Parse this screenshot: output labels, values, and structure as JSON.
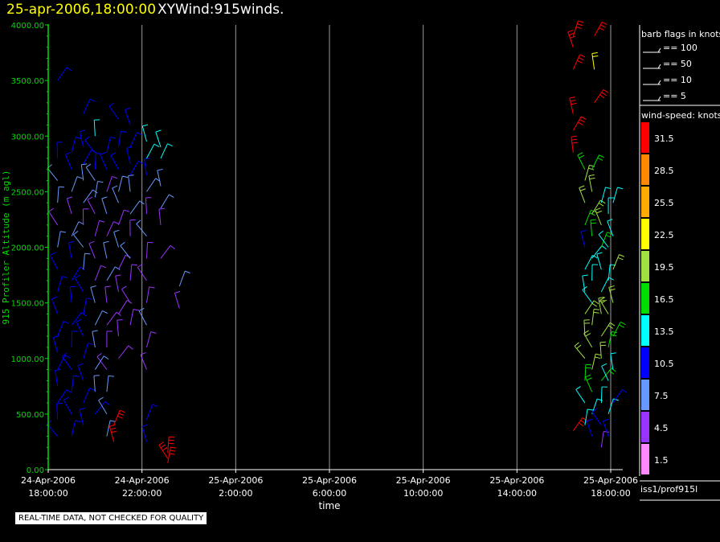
{
  "title": {
    "datetime": "25-apr-2006,18:00:00",
    "name": "XYWind:915winds."
  },
  "chart_data": {
    "type": "wind-barb time-height",
    "xlabel": "time",
    "ylabel": "915 Profiler Altitude (m agl)",
    "ylim": [
      0,
      4000
    ],
    "yticks": [
      "0.00",
      "500.00",
      "1000.00",
      "1500.00",
      "2000.00",
      "2500.00",
      "3000.00",
      "3500.00",
      "4000.00"
    ],
    "xlim_hours": [
      0,
      24
    ],
    "xticks": [
      {
        "hour": 0,
        "date": "24-Apr-2006",
        "time": "18:00:00"
      },
      {
        "hour": 4,
        "date": "24-Apr-2006",
        "time": "22:00:00"
      },
      {
        "hour": 8,
        "date": "25-Apr-2006",
        "time": "2:00:00"
      },
      {
        "hour": 12,
        "date": "25-Apr-2006",
        "time": "6:00:00"
      },
      {
        "hour": 16,
        "date": "25-Apr-2006",
        "time": "10:00:00"
      },
      {
        "hour": 20,
        "date": "25-Apr-2006",
        "time": "14:00:00"
      },
      {
        "hour": 24,
        "date": "25-Apr-2006",
        "time": "18:00:00"
      }
    ],
    "grid": true,
    "barb_legend": {
      "title": "barb flags in knots",
      "items": [
        "== 100",
        "== 50",
        "== 10",
        "== 5"
      ]
    },
    "colorbar": {
      "title": "wind-speed: knots",
      "bins": [
        {
          "label": "31.5",
          "color": "#ff0000"
        },
        {
          "label": "28.5",
          "color": "#ff8800"
        },
        {
          "label": "25.5",
          "color": "#ffaa00"
        },
        {
          "label": "22.5",
          "color": "#ffff00"
        },
        {
          "label": "19.5",
          "color": "#a0e040"
        },
        {
          "label": "16.5",
          "color": "#00dd00"
        },
        {
          "label": "13.5",
          "color": "#00ffff"
        },
        {
          "label": "10.5",
          "color": "#0000ff"
        },
        {
          "label": "7.5",
          "color": "#6699ff"
        },
        {
          "label": "4.5",
          "color": "#9933ff"
        },
        {
          "label": "1.5",
          "color": "#ff88ff"
        }
      ]
    },
    "series": [
      {
        "time_hours": 0.4,
        "alt": [
          300,
          450,
          600,
          750,
          900,
          1050,
          1200,
          1400,
          1600,
          1800,
          2000,
          2200,
          2400,
          2600,
          2800,
          3500
        ],
        "speed": [
          9,
          10,
          10,
          11,
          11,
          10,
          10,
          10,
          11,
          10,
          6,
          5,
          6,
          8,
          11,
          9
        ]
      },
      {
        "time_hours": 1.0,
        "alt": [
          300,
          500,
          700,
          900,
          1100,
          1300,
          1500,
          1700,
          1900,
          2100,
          2300,
          2500,
          2700,
          2850
        ],
        "speed": [
          10,
          10,
          9,
          10,
          11,
          10,
          10,
          11,
          9,
          6,
          5,
          6,
          10,
          11
        ]
      },
      {
        "time_hours": 1.5,
        "alt": [
          400,
          600,
          800,
          1000,
          1200,
          1400,
          1600,
          1800,
          2000,
          2200,
          2400,
          2600,
          2750,
          2900,
          3200
        ],
        "speed": [
          10,
          10,
          9,
          10,
          10,
          10,
          9,
          8,
          7,
          5,
          6,
          7,
          11,
          11,
          10
        ]
      },
      {
        "time_hours": 2.0,
        "alt": [
          500,
          700,
          900,
          1100,
          1300,
          1500,
          1700,
          1900,
          2100,
          2300,
          2450,
          2600,
          2700,
          2850,
          3000
        ],
        "speed": [
          9,
          8,
          7,
          6,
          6,
          6,
          5,
          5,
          5,
          5,
          7,
          8,
          11,
          11,
          12
        ]
      },
      {
        "time_hours": 2.5,
        "alt": [
          300,
          500,
          700,
          900,
          1100,
          1300,
          1500,
          1700,
          1900,
          2100,
          2300,
          2500,
          2700,
          2850
        ],
        "speed": [
          6,
          7,
          6,
          5,
          5,
          5,
          5,
          6,
          6,
          5,
          6,
          5,
          10,
          11
        ]
      },
      {
        "time_hours": 2.8,
        "alt": [
          250,
          400
        ],
        "speed": [
          32,
          31
        ]
      },
      {
        "time_hours": 3.0,
        "alt": [
          1000,
          1200,
          1400,
          1600,
          1800,
          2000,
          2200,
          2400,
          2500,
          2700,
          2900,
          3150
        ],
        "speed": [
          5,
          5,
          5,
          5,
          5,
          6,
          5,
          6,
          8,
          11,
          11,
          11
        ]
      },
      {
        "time_hours": 3.5,
        "alt": [
          1300,
          1500,
          1700,
          1900,
          2100,
          2300,
          2500,
          2650,
          2750,
          2900,
          3100
        ],
        "speed": [
          5,
          5,
          5,
          6,
          5,
          6,
          6,
          10,
          11,
          11,
          11
        ]
      },
      {
        "time_hours": 4.2,
        "alt": [
          250,
          450,
          900,
          1100,
          1300,
          1500,
          1700,
          1900,
          2100,
          2300,
          2500,
          2650,
          2800,
          2950
        ],
        "speed": [
          10,
          10,
          5,
          5,
          6,
          5,
          5,
          5,
          6,
          5,
          6,
          11,
          12,
          12
        ]
      },
      {
        "time_hours": 4.8,
        "alt": [
          1900,
          2200,
          2350,
          2550,
          2800,
          2900
        ],
        "speed": [
          5,
          5,
          6,
          6,
          12,
          12
        ]
      },
      {
        "time_hours": 5.1,
        "alt": [
          60,
          100,
          150
        ],
        "speed": [
          32,
          31,
          32
        ]
      },
      {
        "time_hours": 5.6,
        "alt": [
          1450,
          1650
        ],
        "speed": [
          5,
          6
        ]
      },
      {
        "time_hours": 22.4,
        "alt": [
          350,
          2850,
          3050,
          3200,
          3600,
          3800,
          3900
        ],
        "speed": [
          32,
          32,
          31,
          32,
          32,
          31,
          32
        ]
      },
      {
        "time_hours": 22.9,
        "alt": [
          400,
          600,
          800,
          1000,
          1200,
          1400,
          1600,
          1800,
          2000,
          2200,
          2400,
          2600,
          2700
        ],
        "speed": [
          12,
          13,
          17,
          18,
          19,
          18,
          13,
          12,
          11,
          17,
          19,
          18,
          17
        ]
      },
      {
        "time_hours": 23.2,
        "alt": [
          300,
          500,
          700,
          900,
          1100,
          1300,
          1500,
          1700,
          1900,
          2100,
          2300,
          2500,
          2700
        ],
        "speed": [
          11,
          14,
          17,
          18,
          19,
          19,
          14,
          13,
          12,
          17,
          19,
          18,
          17
        ]
      },
      {
        "time_hours": 23.3,
        "alt": [
          3300,
          3600,
          3900
        ],
        "speed": [
          32,
          22,
          31
        ]
      },
      {
        "time_hours": 23.6,
        "alt": [
          200,
          400,
          600,
          800,
          1000,
          1200,
          1400,
          1600,
          1800,
          2000,
          2200,
          2400
        ],
        "speed": [
          5,
          11,
          13,
          17,
          18,
          19,
          19,
          13,
          12,
          17,
          18,
          14
        ]
      },
      {
        "time_hours": 23.9,
        "alt": [
          300,
          500,
          800,
          1100,
          1400,
          1700,
          2000,
          2300
        ],
        "speed": [
          10,
          12,
          13,
          17,
          18,
          13,
          14,
          14
        ]
      },
      {
        "time_hours": 24.1,
        "alt": [
          600,
          900,
          1200,
          1500,
          1800,
          2100,
          2400
        ],
        "speed": [
          11,
          13,
          17,
          19,
          18,
          14,
          14
        ]
      }
    ]
  },
  "source_label": "iss1/prof915l",
  "disclaimer": "REAL-TIME DATA, NOT CHECKED FOR QUALITY"
}
